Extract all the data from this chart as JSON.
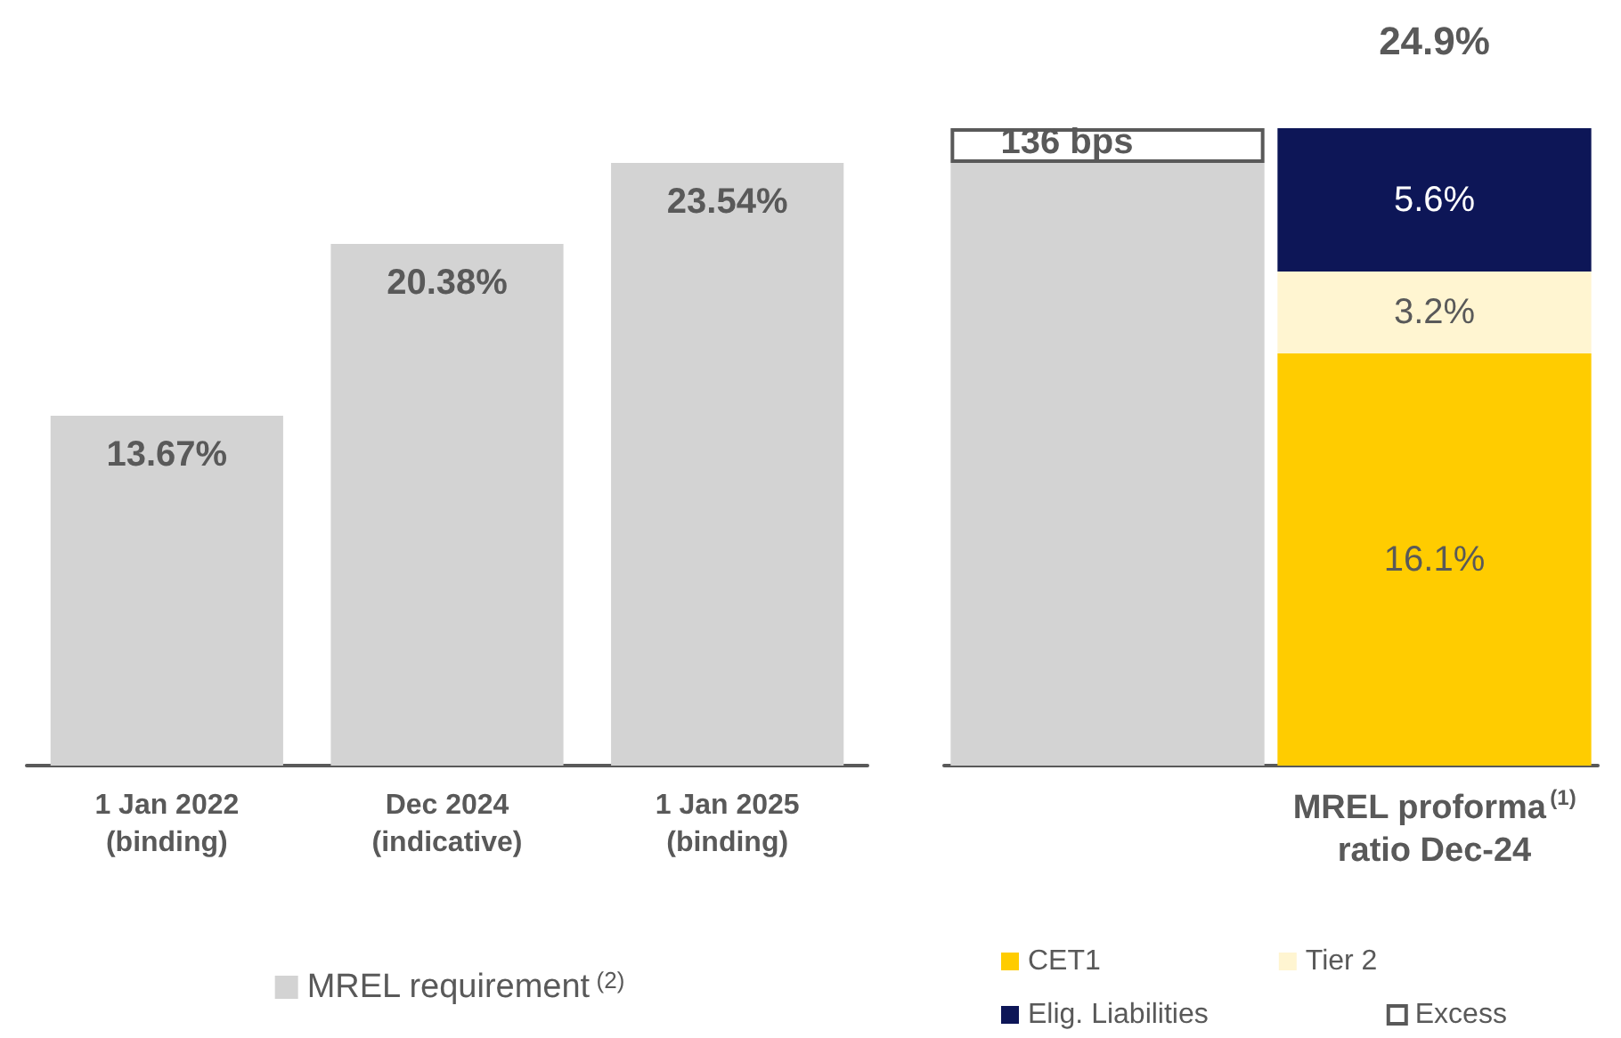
{
  "chart_data": [
    {
      "type": "bar",
      "categories": [
        "1 Jan 2022\n(binding)",
        "Dec 2024\n(indicative)",
        "1 Jan 2025\n(binding)"
      ],
      "tick_labels": "x",
      "legend": "bottom",
      "series": [
        {
          "name": "MREL requirement$^{(2)}$",
          "color": "#d3d3d3",
          "values": [
            13.67,
            20.38,
            23.54
          ],
          "value_labels": [
            "13.67%",
            "20.38%",
            "23.54%"
          ]
        }
      ]
    },
    {
      "type": "bar",
      "stacked": true,
      "categories": [
        null,
        "MREL proforma$^{(1)}$\nratio Dec-24"
      ],
      "tick_labels": "x",
      "legend": "bottom",
      "totals": [
        null,
        "24.9%"
      ],
      "annotations": [
        {
          "text": "136 bps",
          "y": 24.9
        }
      ],
      "series": [
        {
          "color": "#d3d3d3",
          "values": [
            23.54,
            null
          ]
        },
        {
          "name": "Excess",
          "color": "#ffffff",
          "values": [
            1.36,
            null
          ]
        },
        {
          "name": "CET1",
          "color": "#ffcc00",
          "values": [
            null,
            16.1
          ],
          "value_labels": [
            null,
            "16.1%"
          ]
        },
        {
          "name": "Tier 2",
          "color": "#fff5d1",
          "values": [
            null,
            3.2
          ],
          "value_labels": [
            null,
            "3.2%"
          ]
        },
        {
          "name": "Elig. Liabilities",
          "color": "#0d1657",
          "values": [
            null,
            5.6
          ],
          "value_labels": [
            null,
            "5.6%"
          ]
        }
      ]
    }
  ]
}
